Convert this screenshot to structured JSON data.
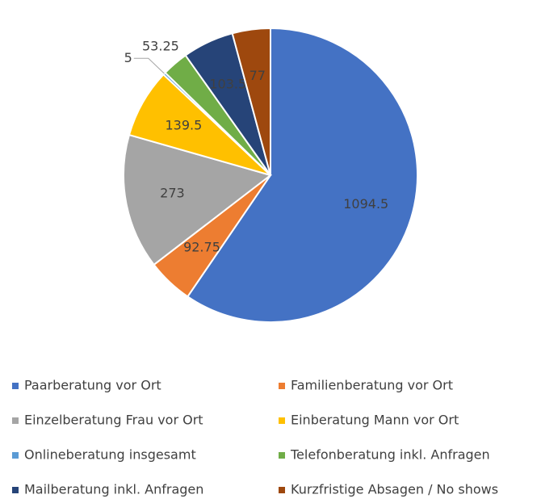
{
  "chart_data": {
    "type": "pie",
    "categories": [
      "Paarberatung vor Ort",
      "Familienberatung vor Ort",
      "Einzelberatung Frau vor Ort",
      "Einberatung Mann vor Ort",
      "Onlineberatung insgesamt",
      "Telefonberatung inkl. Anfragen",
      "Mailberatung inkl. Anfragen",
      "Kurzfristige Absagen / No shows"
    ],
    "values": [
      1094.5,
      92.75,
      273,
      139.5,
      5,
      53.25,
      103.5,
      77
    ],
    "colors": [
      "#4472c4",
      "#ed7d31",
      "#a5a5a5",
      "#ffc000",
      "#5b9bd5",
      "#70ad47",
      "#264478",
      "#9e480e"
    ],
    "legend": "bottom"
  }
}
